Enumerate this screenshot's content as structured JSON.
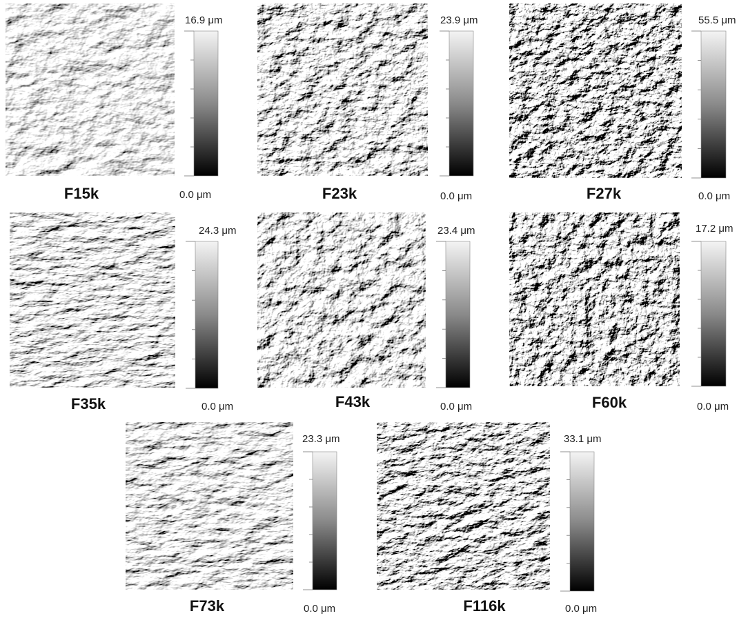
{
  "panels": [
    {
      "label": "F15k",
      "max": "16.9 μm",
      "min": "0.0 μm"
    },
    {
      "label": "F23k",
      "max": "23.9 μm",
      "min": "0.0 μm"
    },
    {
      "label": "F27k",
      "max": "55.5 μm",
      "min": "0.0 μm"
    },
    {
      "label": "F35k",
      "max": "24.3 μm",
      "min": "0.0 μm"
    },
    {
      "label": "F43k",
      "max": "23.4 μm",
      "min": "0.0 μm"
    },
    {
      "label": "F60k",
      "max": "17.2 μm",
      "min": "0.0 μm"
    },
    {
      "label": "F73k",
      "max": "23.3 μm",
      "min": "0.0 μm"
    },
    {
      "label": "F116k",
      "max": "33.1 μm",
      "min": "0.0 μm"
    }
  ]
}
